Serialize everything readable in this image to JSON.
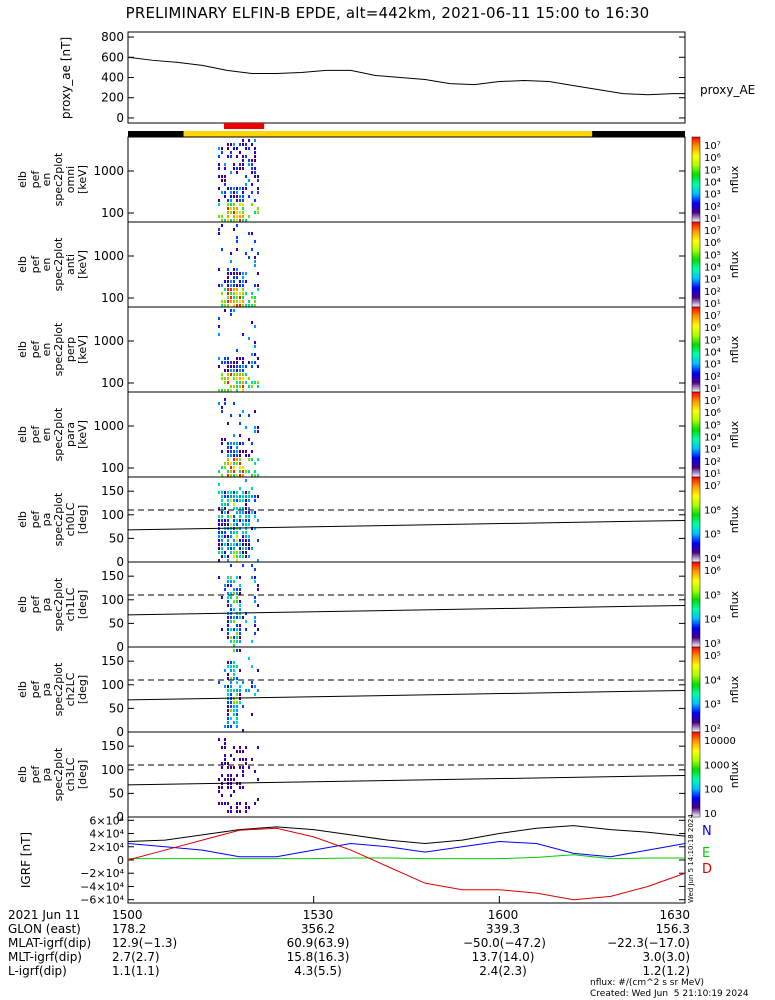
{
  "title": "PRELIMINARY ELFIN-B EPDE, alt=442km, 2021-06-11 15:00 to 16:30",
  "chart_data": [
    {
      "type": "line",
      "name": "proxy_ae",
      "ylabel": "proxy_ae [nT]",
      "legend": "proxy_AE",
      "ylim": [
        -50,
        850
      ],
      "yticks": [
        "0",
        "200",
        "400",
        "600",
        "800"
      ],
      "yticks_values": [
        0,
        200,
        400,
        600,
        800
      ],
      "x_minutes": [
        0,
        4,
        8,
        12,
        16,
        20,
        24,
        28,
        32,
        36,
        40,
        44,
        48,
        52,
        56,
        60,
        64,
        68,
        72,
        76,
        80,
        84,
        88,
        90
      ],
      "values": [
        600,
        570,
        550,
        520,
        470,
        440,
        440,
        450,
        470,
        470,
        420,
        400,
        380,
        340,
        330,
        360,
        370,
        360,
        320,
        280,
        240,
        230,
        240,
        240
      ]
    },
    {
      "type": "heatmap",
      "name": "omni",
      "ylabel": [
        "elb",
        "pef",
        "en",
        "spec2plot",
        "omni",
        "[keV]"
      ],
      "yticks": [
        "1000",
        "100"
      ],
      "colorbar_label": "nflux",
      "colorbar_ticks": [
        "10⁷",
        "10⁶",
        "10⁵",
        "10⁴",
        "10³",
        "10²",
        "10¹"
      ]
    },
    {
      "type": "heatmap",
      "name": "anti",
      "ylabel": [
        "elb",
        "pef",
        "en",
        "spec2plot",
        "anti",
        "[keV]"
      ],
      "yticks": [
        "1000",
        "100"
      ],
      "colorbar_label": "nflux",
      "colorbar_ticks": [
        "10⁷",
        "10⁶",
        "10⁵",
        "10⁴",
        "10³",
        "10²",
        "10¹"
      ]
    },
    {
      "type": "heatmap",
      "name": "perp",
      "ylabel": [
        "elb",
        "pef",
        "en",
        "spec2plot",
        "perp",
        "[keV]"
      ],
      "yticks": [
        "1000",
        "100"
      ],
      "colorbar_label": "nflux",
      "colorbar_ticks": [
        "10⁷",
        "10⁶",
        "10⁵",
        "10⁴",
        "10³",
        "10²",
        "10¹"
      ]
    },
    {
      "type": "heatmap",
      "name": "para",
      "ylabel": [
        "elb",
        "pef",
        "en",
        "spec2plot",
        "para",
        "[keV]"
      ],
      "yticks": [
        "1000",
        "100"
      ],
      "colorbar_label": "nflux",
      "colorbar_ticks": [
        "10⁷",
        "10⁶",
        "10⁵",
        "10⁴",
        "10³",
        "10²",
        "10¹"
      ]
    },
    {
      "type": "heatmap",
      "name": "ch0LC",
      "ylabel": [
        "elb",
        "pef",
        "pa",
        "spec2plot",
        "ch0LC",
        "[deg]"
      ],
      "yticks": [
        "150",
        "100",
        "50",
        "0"
      ],
      "ylim": [
        0,
        180
      ],
      "colorbar_label": "nflux",
      "colorbar_ticks": [
        "10⁷",
        "10⁶",
        "10⁵",
        "10⁴"
      ]
    },
    {
      "type": "heatmap",
      "name": "ch1LC",
      "ylabel": [
        "elb",
        "pef",
        "pa",
        "spec2plot",
        "ch1LC",
        "[deg]"
      ],
      "yticks": [
        "150",
        "100",
        "50",
        "0"
      ],
      "ylim": [
        0,
        180
      ],
      "colorbar_label": "nflux",
      "colorbar_ticks": [
        "10⁶",
        "10⁵",
        "10⁴",
        "10³"
      ]
    },
    {
      "type": "heatmap",
      "name": "ch2LC",
      "ylabel": [
        "elb",
        "pef",
        "pa",
        "spec2plot",
        "ch2LC",
        "[deg]"
      ],
      "yticks": [
        "150",
        "100",
        "50",
        "0"
      ],
      "ylim": [
        0,
        180
      ],
      "colorbar_label": "nflux",
      "colorbar_ticks": [
        "10⁵",
        "10⁴",
        "10³",
        "10²"
      ]
    },
    {
      "type": "heatmap",
      "name": "ch3LC",
      "ylabel": [
        "elb",
        "pef",
        "pa",
        "spec2plot",
        "ch3LC",
        "[deg]"
      ],
      "yticks": [
        "150",
        "100",
        "50",
        "0"
      ],
      "ylim": [
        0,
        180
      ],
      "colorbar_label": "nflux",
      "colorbar_ticks": [
        "10000",
        "1000",
        "100",
        "10"
      ]
    },
    {
      "type": "line",
      "name": "IGRF",
      "ylabel": "IGRF [nT]",
      "ylim": [
        -65000,
        65000
      ],
      "yticks": [
        "6×10⁴",
        "4×10⁴",
        "2×10⁴",
        "0",
        "−2×10⁴",
        "−4×10⁴",
        "−6×10⁴"
      ],
      "yticks_values": [
        60000,
        40000,
        20000,
        0,
        -20000,
        -40000,
        -60000
      ],
      "legend": [
        "N",
        "E",
        "D"
      ],
      "side_text": "Wed Jun  5 14:10:18 2024",
      "x_minutes": [
        0,
        6,
        12,
        18,
        24,
        30,
        36,
        42,
        48,
        54,
        60,
        66,
        72,
        78,
        84,
        90
      ],
      "series": [
        {
          "name": "N",
          "color": "#0000ff",
          "values": [
            25000,
            20000,
            15000,
            5000,
            5000,
            15000,
            25000,
            20000,
            12000,
            20000,
            28000,
            25000,
            10000,
            5000,
            15000,
            25000
          ]
        },
        {
          "name": "E",
          "color": "#00cc00",
          "values": [
            2000,
            2000,
            2000,
            2000,
            2000,
            2000,
            3000,
            3000,
            2000,
            2000,
            2000,
            4000,
            8000,
            2000,
            3000,
            3000
          ]
        },
        {
          "name": "D",
          "color": "#dd0000",
          "values": [
            0,
            15000,
            30000,
            45000,
            48000,
            35000,
            15000,
            -10000,
            -35000,
            -45000,
            -45000,
            -50000,
            -60000,
            -55000,
            -40000,
            -20000
          ]
        }
      ],
      "total": {
        "color": "#000000",
        "values": [
          28000,
          30000,
          38000,
          46000,
          50000,
          46000,
          38000,
          30000,
          25000,
          30000,
          40000,
          48000,
          52000,
          46000,
          42000,
          36000
        ]
      }
    }
  ],
  "time_axis": {
    "labels": [
      "1500",
      "1530",
      "1600",
      "1630"
    ],
    "minutes": [
      0,
      30,
      60,
      90
    ],
    "rows": [
      {
        "name": "2021 Jun 11",
        "values": [
          "1500",
          "1530",
          "1600",
          "1630"
        ]
      },
      {
        "name": "GLON (east)",
        "values": [
          "178.2",
          "356.2",
          "339.3",
          "156.3"
        ]
      },
      {
        "name": "MLAT-igrf(dip)",
        "values": [
          "12.9(−1.3)",
          "60.9(63.9)",
          "−50.0(−47.2)",
          "−22.3(−17.0)"
        ]
      },
      {
        "name": "MLT-igrf(dip)",
        "values": [
          "2.7(2.7)",
          "15.8(16.3)",
          "13.7(14.0)",
          "3.0(3.0)"
        ]
      },
      {
        "name": "L-igrf(dip)",
        "values": [
          "1.1(1.1)",
          "4.3(5.5)",
          "2.4(2.3)",
          "1.2(1.2)"
        ]
      }
    ]
  },
  "status_bar": {
    "segments": [
      {
        "start_min": 0,
        "end_min": 9,
        "color": "#000000"
      },
      {
        "start_min": 9,
        "end_min": 75,
        "color": "#ffd700"
      },
      {
        "start_min": 75,
        "end_min": 90,
        "color": "#000000"
      }
    ],
    "highlight": {
      "start_min": 15.5,
      "end_min": 22,
      "color": "#ee0000"
    }
  },
  "footnote_units": "nflux: #/(cm^2 s sr MeV)",
  "footnote_created": "Created: Wed Jun  5 21:10:19 2024"
}
